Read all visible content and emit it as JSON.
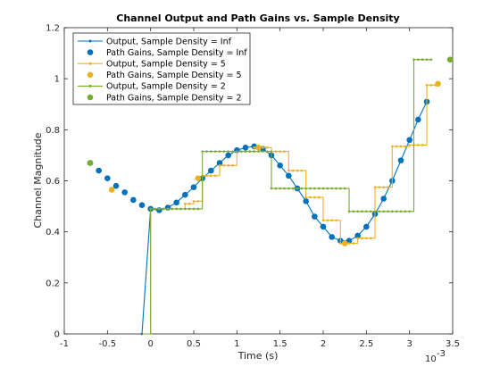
{
  "chart_data": {
    "type": "line",
    "title": "Channel Output and Path Gains vs. Sample Density",
    "xlabel": "Time (s)",
    "ylabel": "Channel Magnitude",
    "x_exponent_label": "10",
    "x_exponent_power": "-3",
    "xlim": [
      -1,
      3.5
    ],
    "ylim": [
      0,
      1.2
    ],
    "x_ticks": [
      -1,
      -0.5,
      0,
      0.5,
      1,
      1.5,
      2,
      2.5,
      3,
      3.5
    ],
    "x_tick_labels": [
      "-1",
      "-0.5",
      "0",
      "0.5",
      "1",
      "1.5",
      "2",
      "2.5",
      "3",
      "3.5"
    ],
    "y_ticks": [
      0,
      0.2,
      0.4,
      0.6,
      0.8,
      1,
      1.2
    ],
    "y_tick_labels": [
      "0",
      "0.2",
      "0.4",
      "0.6",
      "0.8",
      "1",
      "1.2"
    ],
    "grid": false,
    "legend_position": "top-left",
    "colors": {
      "inf": "#0072BD",
      "five": "#EDB120",
      "two": "#77AC30"
    },
    "series": [
      {
        "name": "Output, Sample Density = Inf",
        "color": "#0072BD",
        "style": "line-dots",
        "x": [
          -0.1,
          0.0,
          0.1,
          0.2,
          0.3,
          0.4,
          0.5,
          0.6,
          0.7,
          0.8,
          0.9,
          1.0,
          1.1,
          1.2,
          1.3,
          1.4,
          1.5,
          1.6,
          1.7,
          1.8,
          1.9,
          2.0,
          2.1,
          2.2,
          2.3,
          2.4,
          2.5,
          2.6,
          2.7,
          2.8,
          2.9,
          3.0,
          3.1,
          3.2
        ],
        "y": [
          0,
          0.49,
          0.485,
          0.495,
          0.515,
          0.545,
          0.575,
          0.61,
          0.64,
          0.67,
          0.7,
          0.72,
          0.73,
          0.735,
          0.725,
          0.7,
          0.66,
          0.62,
          0.57,
          0.52,
          0.46,
          0.42,
          0.38,
          0.365,
          0.365,
          0.385,
          0.42,
          0.47,
          0.53,
          0.6,
          0.68,
          0.76,
          0.84,
          0.91
        ]
      },
      {
        "name": "Path Gains, Sample Density = Inf",
        "color": "#0072BD",
        "style": "markers",
        "x": [
          -0.7,
          -0.6,
          -0.5,
          -0.4,
          -0.3,
          -0.2,
          -0.1,
          0.0,
          0.1,
          0.2,
          0.3,
          0.4,
          0.5,
          0.6,
          0.7,
          0.8,
          0.9,
          1.0,
          1.1,
          1.2,
          1.3,
          1.4,
          1.5,
          1.6,
          1.7,
          1.8,
          1.9,
          2.0,
          2.1,
          2.2,
          2.3,
          2.4,
          2.5,
          2.6,
          2.7,
          2.8,
          2.9,
          3.0,
          3.1,
          3.2
        ],
        "y": [
          0.67,
          0.64,
          0.61,
          0.58,
          0.555,
          0.525,
          0.505,
          0.49,
          0.485,
          0.495,
          0.515,
          0.545,
          0.575,
          0.61,
          0.64,
          0.67,
          0.7,
          0.72,
          0.73,
          0.735,
          0.725,
          0.7,
          0.66,
          0.62,
          0.57,
          0.52,
          0.46,
          0.42,
          0.38,
          0.365,
          0.365,
          0.385,
          0.42,
          0.47,
          0.53,
          0.6,
          0.68,
          0.76,
          0.84,
          0.91
        ]
      },
      {
        "name": "Output, Sample Density = 5",
        "color": "#EDB120",
        "style": "step-dots",
        "x": [
          -0.1,
          0.0,
          0.2,
          0.4,
          0.5,
          0.6,
          0.7,
          0.8,
          0.9,
          1.0,
          1.1,
          1.2,
          1.3,
          1.4,
          1.5,
          1.6,
          1.7,
          1.8,
          1.9,
          2.0,
          2.1,
          2.2,
          2.3,
          2.4,
          2.5,
          2.6,
          2.7,
          2.8,
          2.9,
          3.0,
          3.1,
          3.2,
          3.3
        ],
        "y": [
          0,
          0.49,
          0.49,
          0.51,
          0.52,
          0.62,
          0.62,
          0.66,
          0.66,
          0.715,
          0.715,
          0.73,
          0.73,
          0.715,
          0.715,
          0.64,
          0.64,
          0.535,
          0.535,
          0.445,
          0.445,
          0.355,
          0.355,
          0.375,
          0.375,
          0.575,
          0.575,
          0.735,
          0.735,
          0.74,
          0.74,
          0.975,
          0.975
        ]
      },
      {
        "name": "Path Gains, Sample Density = 5",
        "color": "#EDB120",
        "style": "markers",
        "x": [
          -0.45,
          0.55,
          1.25,
          2.25,
          3.33
        ],
        "y": [
          0.565,
          0.61,
          0.73,
          0.355,
          0.98
        ]
      },
      {
        "name": "Output, Sample Density = 2",
        "color": "#77AC30",
        "style": "step-dots",
        "x": [
          -0.1,
          0.0,
          0.6,
          1.4,
          2.3,
          3.05,
          3.25
        ],
        "y": [
          0,
          0.49,
          0.715,
          0.57,
          0.48,
          1.075,
          1.075
        ]
      },
      {
        "name": "Path Gains, Sample Density = 2",
        "color": "#77AC30",
        "style": "markers",
        "x": [
          -0.7,
          3.47
        ],
        "y": [
          0.67,
          1.075
        ]
      }
    ]
  }
}
